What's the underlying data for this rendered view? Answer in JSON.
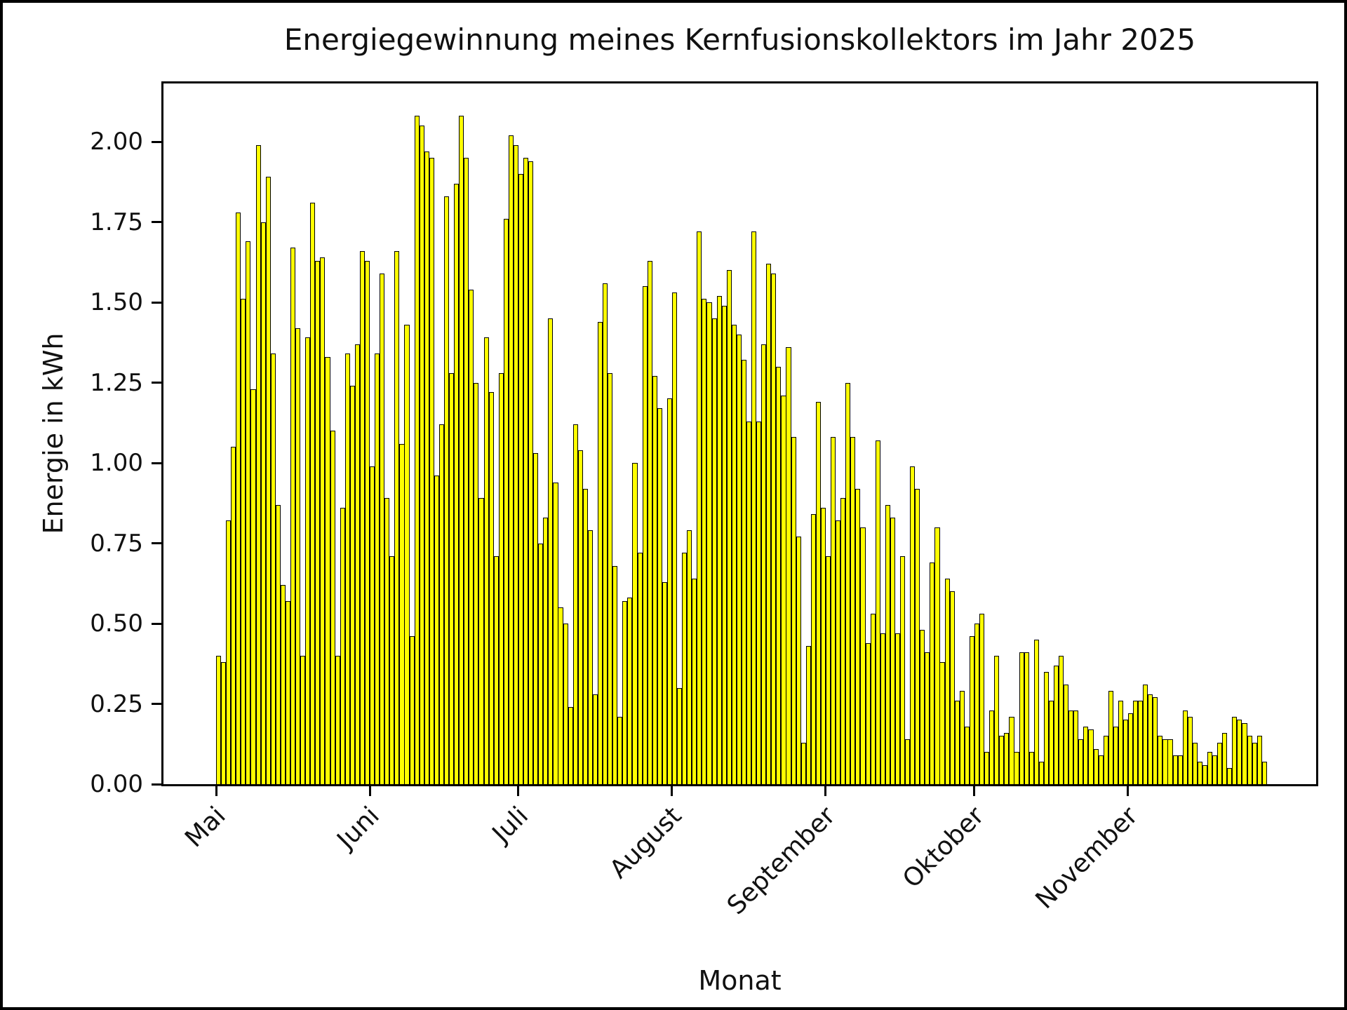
{
  "title": "Energiegewinnung meines Kernfusionskollektors im Jahr 2025",
  "x_axis": {
    "label": "Monat"
  },
  "y_axis": {
    "label": "Energie in kWh"
  },
  "chart_data": {
    "type": "bar",
    "title": "Energiegewinnung meines Kernfusionskollektors im Jahr 2025",
    "xlabel": "Monat",
    "ylabel": "Energie in kWh",
    "bar_color": "#ffff00",
    "bar_edge_color": "#000000",
    "grid": false,
    "legend": "none",
    "ylim": [
      0,
      2.19
    ],
    "y_ticks": [
      {
        "label": "0.00",
        "value": 0.0
      },
      {
        "label": "0.25",
        "value": 0.25
      },
      {
        "label": "0.50",
        "value": 0.5
      },
      {
        "label": "0.75",
        "value": 0.75
      },
      {
        "label": "1.00",
        "value": 1.0
      },
      {
        "label": "1.25",
        "value": 1.25
      },
      {
        "label": "1.50",
        "value": 1.5
      },
      {
        "label": "1.75",
        "value": 1.75
      },
      {
        "label": "2.00",
        "value": 2.0
      }
    ],
    "months": [
      {
        "label": "Mai",
        "days": 31
      },
      {
        "label": "Juni",
        "days": 30
      },
      {
        "label": "Juli",
        "days": 31
      },
      {
        "label": "August",
        "days": 31
      },
      {
        "label": "September",
        "days": 30
      },
      {
        "label": "Oktober",
        "days": 31
      },
      {
        "label": "November",
        "days": 28
      }
    ],
    "start_date": "2025-05-01",
    "unit": "kWh",
    "values": [
      0.4,
      0.38,
      0.82,
      1.05,
      1.78,
      1.51,
      1.69,
      1.23,
      1.99,
      1.75,
      1.89,
      1.34,
      0.87,
      0.62,
      0.57,
      1.67,
      1.42,
      0.4,
      1.39,
      1.81,
      1.63,
      1.64,
      1.33,
      1.1,
      0.4,
      0.86,
      1.34,
      1.24,
      1.37,
      1.66,
      1.63,
      0.99,
      1.34,
      1.59,
      0.89,
      0.71,
      1.66,
      1.06,
      1.43,
      0.46,
      2.08,
      2.05,
      1.97,
      1.95,
      0.96,
      1.12,
      1.83,
      1.28,
      1.87,
      2.08,
      1.95,
      1.54,
      1.25,
      0.89,
      1.39,
      1.22,
      0.71,
      1.28,
      1.76,
      2.02,
      1.99,
      1.9,
      1.95,
      1.94,
      1.03,
      0.75,
      0.83,
      1.45,
      0.94,
      0.55,
      0.5,
      0.24,
      1.12,
      1.04,
      0.92,
      0.79,
      0.28,
      1.44,
      1.56,
      1.28,
      0.68,
      0.21,
      0.57,
      0.58,
      1.0,
      0.72,
      1.55,
      1.63,
      1.27,
      1.17,
      0.63,
      1.2,
      1.53,
      0.3,
      0.72,
      0.79,
      0.64,
      1.72,
      1.51,
      1.5,
      1.45,
      1.52,
      1.49,
      1.6,
      1.43,
      1.4,
      1.32,
      1.13,
      1.72,
      1.13,
      1.37,
      1.62,
      1.59,
      1.3,
      1.21,
      1.36,
      1.08,
      0.77,
      0.13,
      0.43,
      0.84,
      1.19,
      0.86,
      0.71,
      1.08,
      0.82,
      0.89,
      1.25,
      1.08,
      0.92,
      0.8,
      0.44,
      0.53,
      1.07,
      0.47,
      0.87,
      0.83,
      0.47,
      0.71,
      0.14,
      0.99,
      0.92,
      0.48,
      0.41,
      0.69,
      0.8,
      0.38,
      0.64,
      0.6,
      0.26,
      0.29,
      0.18,
      0.46,
      0.5,
      0.53,
      0.1,
      0.23,
      0.4,
      0.15,
      0.16,
      0.21,
      0.1,
      0.41,
      0.41,
      0.1,
      0.45,
      0.07,
      0.35,
      0.26,
      0.37,
      0.4,
      0.31,
      0.23,
      0.23,
      0.14,
      0.18,
      0.17,
      0.11,
      0.09,
      0.15,
      0.29,
      0.18,
      0.26,
      0.2,
      0.22,
      0.26,
      0.26,
      0.31,
      0.28,
      0.27,
      0.15,
      0.14,
      0.14,
      0.09,
      0.09,
      0.23,
      0.21,
      0.13,
      0.07,
      0.06,
      0.1,
      0.09,
      0.13,
      0.16,
      0.05,
      0.21,
      0.2,
      0.19,
      0.15,
      0.13,
      0.15,
      0.07
    ]
  }
}
